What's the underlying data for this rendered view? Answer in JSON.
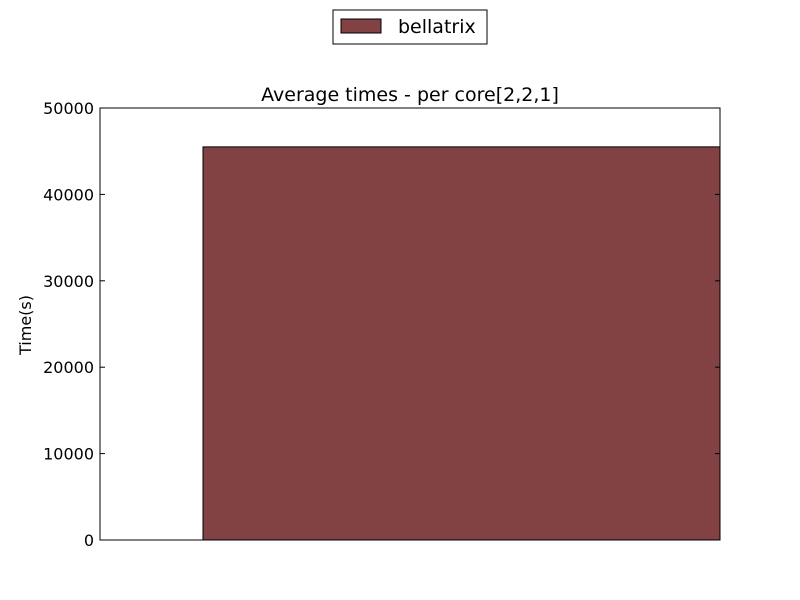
{
  "chart_data": {
    "type": "bar",
    "title": "Average times - per core[2,2,1]",
    "xlabel": "",
    "ylabel": "Time(s)",
    "ylim": [
      0,
      50000
    ],
    "yticks": [
      "0",
      "10000",
      "20000",
      "30000",
      "40000",
      "50000"
    ],
    "categories": [
      ""
    ],
    "series": [
      {
        "name": "bellatrix",
        "values": [
          45500
        ],
        "color": "#824142"
      }
    ],
    "legend_position": "top-center",
    "grid": false
  }
}
